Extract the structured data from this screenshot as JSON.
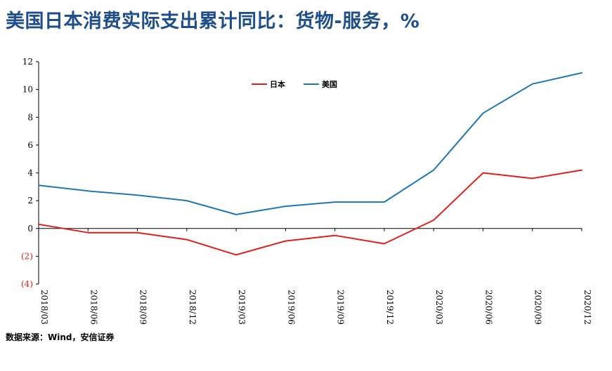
{
  "title": "美国日本消费实际支出累计同比：货物-服务，%",
  "source": "数据来源：Wind，安信证券",
  "chart_data": {
    "type": "line",
    "categories": [
      "2018/03",
      "2018/06",
      "2018/09",
      "2018/12",
      "2019/03",
      "2019/06",
      "2019/09",
      "2019/12",
      "2020/03",
      "2020/06",
      "2020/09",
      "2020/12"
    ],
    "series": [
      {
        "name": "日本",
        "color": "#e0201b",
        "values": [
          0.3,
          -0.3,
          -0.3,
          -0.8,
          -1.9,
          -0.9,
          -0.5,
          -1.1,
          0.6,
          4.0,
          3.6,
          4.2
        ]
      },
      {
        "name": "美国",
        "color": "#1f77b4",
        "values": [
          3.1,
          2.7,
          2.4,
          2.0,
          1.0,
          1.6,
          1.9,
          1.9,
          4.2,
          8.3,
          10.4,
          11.2
        ]
      }
    ],
    "ylim": [
      -4,
      12
    ],
    "yticks": [
      12,
      10,
      8,
      6,
      4,
      2,
      0,
      -2,
      -4
    ],
    "ytick_labels": [
      "12",
      "10",
      "8",
      "6",
      "4",
      "2",
      "0",
      "(2)",
      "(4)"
    ],
    "negative_label_color": "#e0201b",
    "legend_position": "top-center",
    "grid": false
  }
}
